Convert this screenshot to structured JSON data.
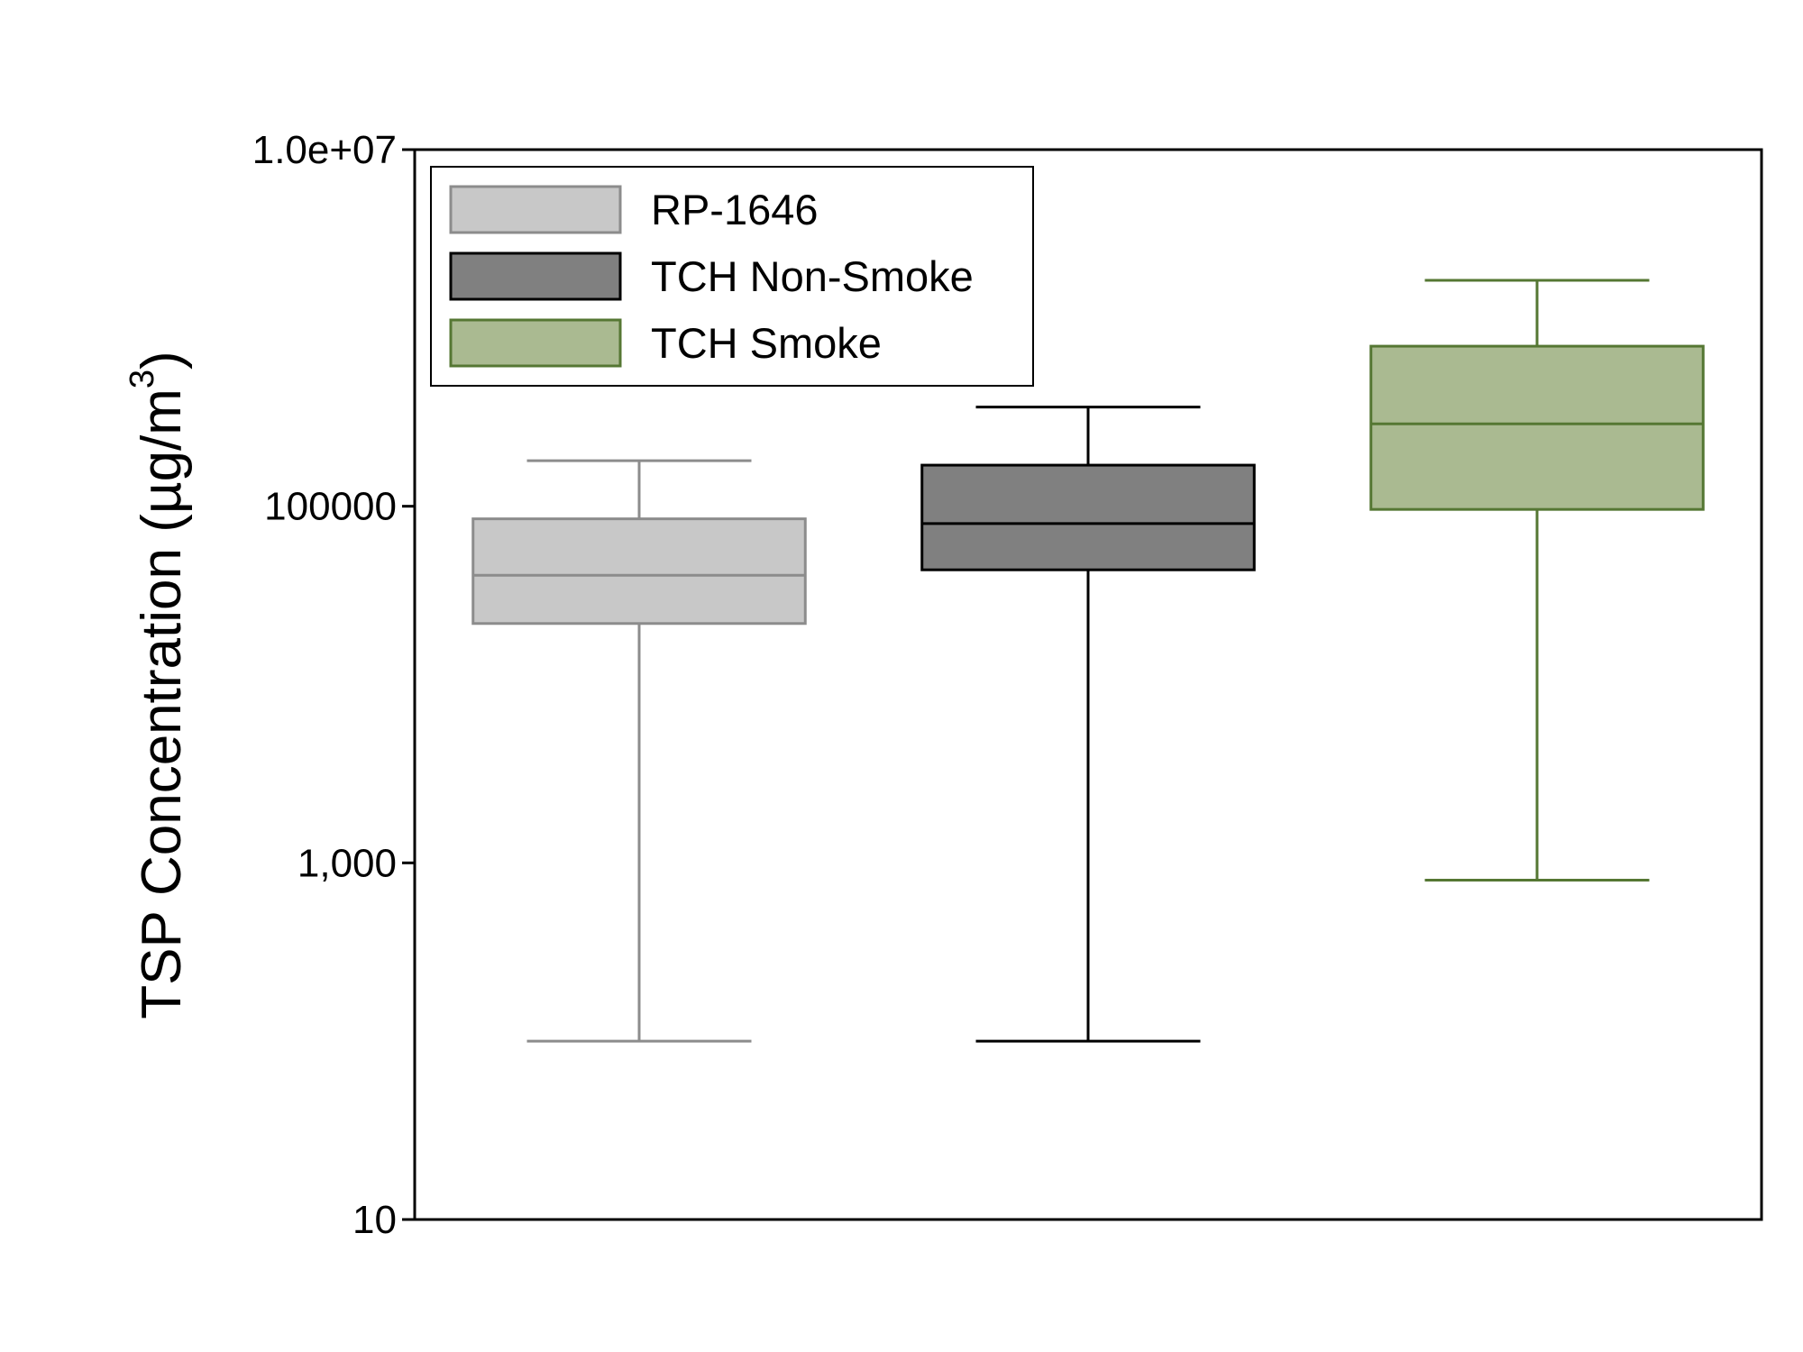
{
  "chart_data": {
    "type": "box",
    "ylabel": "TSP Concentration (µg/m",
    "ylabel_superscript": "3",
    "ylabel_close": ")",
    "yscale": "log",
    "ylim": [
      10,
      10000000
    ],
    "yticks": [
      {
        "value": 10,
        "label": "10"
      },
      {
        "value": 1000,
        "label": "1,000"
      },
      {
        "value": 100000,
        "label": "100000"
      },
      {
        "value": 10000000,
        "label": "1.0e+07"
      }
    ],
    "grid": false,
    "legend_position": "top-left",
    "series": [
      {
        "name": "RP-1646",
        "whisker_low": 100,
        "q1": 22000,
        "median": 41000,
        "q3": 85000,
        "whisker_high": 180000,
        "fill": "#c8c8c8",
        "stroke": "#8c8c8c"
      },
      {
        "name": "TCH Non-Smoke",
        "whisker_low": 100,
        "q1": 44000,
        "median": 80000,
        "q3": 170000,
        "whisker_high": 360000,
        "fill": "#808080",
        "stroke": "#000000"
      },
      {
        "name": "TCH Smoke",
        "whisker_low": 800,
        "q1": 96000,
        "median": 290000,
        "q3": 790000,
        "whisker_high": 1850000,
        "fill": "#aaba91",
        "stroke": "#557733"
      }
    ]
  }
}
